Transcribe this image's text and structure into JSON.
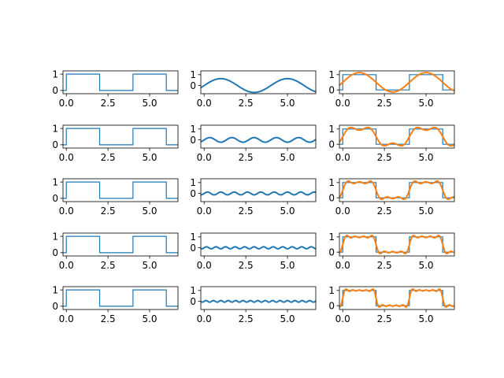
{
  "figure": {
    "background": "#ffffff"
  },
  "chart_data": [
    {
      "type": "line",
      "row": 1,
      "col": 1,
      "series": [
        {
          "kind": "square",
          "color": "#1f77b4",
          "period": 4,
          "high": 1,
          "low": 0
        }
      ],
      "xlim": [
        -0.2,
        6.7
      ],
      "ylim": [
        -0.2,
        1.2
      ],
      "xticks": [
        0.0,
        2.5,
        5.0
      ],
      "xtick_labels": [
        "0.0",
        "2.5",
        "5.0"
      ],
      "yticks": [
        0,
        1
      ],
      "ytick_labels": [
        "0",
        "1"
      ]
    },
    {
      "type": "line",
      "row": 1,
      "col": 2,
      "series": [
        {
          "kind": "fourier-term",
          "harmonic": 1,
          "color": "#1f77b4"
        }
      ],
      "xlim": [
        -0.2,
        6.7
      ],
      "ylim": [
        -0.75,
        1.35
      ],
      "xticks": [
        0.0,
        2.5,
        5.0
      ],
      "xtick_labels": [
        "0.0",
        "2.5",
        "5.0"
      ],
      "yticks": [
        0,
        1
      ],
      "ytick_labels": [
        "0",
        "1"
      ]
    },
    {
      "type": "line",
      "row": 1,
      "col": 3,
      "series": [
        {
          "kind": "square",
          "color": "#1f77b4",
          "period": 4,
          "high": 1,
          "low": 0
        },
        {
          "kind": "fourier-partial-sum",
          "harmonics": 1,
          "color": "#ff7f0e"
        }
      ],
      "xlim": [
        -0.2,
        6.7
      ],
      "ylim": [
        -0.25,
        1.25
      ],
      "xticks": [
        0.0,
        2.5,
        5.0
      ],
      "xtick_labels": [
        "0.0",
        "2.5",
        "5.0"
      ],
      "yticks": [
        0,
        1
      ],
      "ytick_labels": [
        "0",
        "1"
      ]
    },
    {
      "type": "line",
      "row": 2,
      "col": 1,
      "series": [
        {
          "kind": "square",
          "color": "#1f77b4",
          "period": 4,
          "high": 1,
          "low": 0
        }
      ],
      "xlim": [
        -0.2,
        6.7
      ],
      "ylim": [
        -0.2,
        1.2
      ],
      "xticks": [
        0.0,
        2.5,
        5.0
      ],
      "xtick_labels": [
        "0.0",
        "2.5",
        "5.0"
      ],
      "yticks": [
        0,
        1
      ],
      "ytick_labels": [
        "0",
        "1"
      ]
    },
    {
      "type": "line",
      "row": 2,
      "col": 2,
      "series": [
        {
          "kind": "fourier-term",
          "harmonic": 3,
          "color": "#1f77b4"
        }
      ],
      "xlim": [
        -0.2,
        6.7
      ],
      "ylim": [
        -0.75,
        1.35
      ],
      "xticks": [
        0.0,
        2.5,
        5.0
      ],
      "xtick_labels": [
        "0.0",
        "2.5",
        "5.0"
      ],
      "yticks": [
        0,
        1
      ],
      "ytick_labels": [
        "0",
        "1"
      ]
    },
    {
      "type": "line",
      "row": 2,
      "col": 3,
      "series": [
        {
          "kind": "square",
          "color": "#1f77b4",
          "period": 4,
          "high": 1,
          "low": 0
        },
        {
          "kind": "fourier-partial-sum",
          "harmonics": 3,
          "color": "#ff7f0e"
        }
      ],
      "xlim": [
        -0.2,
        6.7
      ],
      "ylim": [
        -0.25,
        1.25
      ],
      "xticks": [
        0.0,
        2.5,
        5.0
      ],
      "xtick_labels": [
        "0.0",
        "2.5",
        "5.0"
      ],
      "yticks": [
        0,
        1
      ],
      "ytick_labels": [
        "0",
        "1"
      ]
    },
    {
      "type": "line",
      "row": 3,
      "col": 1,
      "series": [
        {
          "kind": "square",
          "color": "#1f77b4",
          "period": 4,
          "high": 1,
          "low": 0
        }
      ],
      "xlim": [
        -0.2,
        6.7
      ],
      "ylim": [
        -0.2,
        1.2
      ],
      "xticks": [
        0.0,
        2.5,
        5.0
      ],
      "xtick_labels": [
        "0.0",
        "2.5",
        "5.0"
      ],
      "yticks": [
        0,
        1
      ],
      "ytick_labels": [
        "0",
        "1"
      ]
    },
    {
      "type": "line",
      "row": 3,
      "col": 2,
      "series": [
        {
          "kind": "fourier-term",
          "harmonic": 5,
          "color": "#1f77b4"
        }
      ],
      "xlim": [
        -0.2,
        6.7
      ],
      "ylim": [
        -0.75,
        1.35
      ],
      "xticks": [
        0.0,
        2.5,
        5.0
      ],
      "xtick_labels": [
        "0.0",
        "2.5",
        "5.0"
      ],
      "yticks": [
        0,
        1
      ],
      "ytick_labels": [
        "0",
        "1"
      ]
    },
    {
      "type": "line",
      "row": 3,
      "col": 3,
      "series": [
        {
          "kind": "square",
          "color": "#1f77b4",
          "period": 4,
          "high": 1,
          "low": 0
        },
        {
          "kind": "fourier-partial-sum",
          "harmonics": 5,
          "color": "#ff7f0e"
        }
      ],
      "xlim": [
        -0.2,
        6.7
      ],
      "ylim": [
        -0.25,
        1.25
      ],
      "xticks": [
        0.0,
        2.5,
        5.0
      ],
      "xtick_labels": [
        "0.0",
        "2.5",
        "5.0"
      ],
      "yticks": [
        0,
        1
      ],
      "ytick_labels": [
        "0",
        "1"
      ]
    },
    {
      "type": "line",
      "row": 4,
      "col": 1,
      "series": [
        {
          "kind": "square",
          "color": "#1f77b4",
          "period": 4,
          "high": 1,
          "low": 0
        }
      ],
      "xlim": [
        -0.2,
        6.7
      ],
      "ylim": [
        -0.2,
        1.2
      ],
      "xticks": [
        0.0,
        2.5,
        5.0
      ],
      "xtick_labels": [
        "0.0",
        "2.5",
        "5.0"
      ],
      "yticks": [
        0,
        1
      ],
      "ytick_labels": [
        "0",
        "1"
      ]
    },
    {
      "type": "line",
      "row": 4,
      "col": 2,
      "series": [
        {
          "kind": "fourier-term",
          "harmonic": 7,
          "color": "#1f77b4"
        }
      ],
      "xlim": [
        -0.2,
        6.7
      ],
      "ylim": [
        -0.75,
        1.35
      ],
      "xticks": [
        0.0,
        2.5,
        5.0
      ],
      "xtick_labels": [
        "0.0",
        "2.5",
        "5.0"
      ],
      "yticks": [
        0,
        1
      ],
      "ytick_labels": [
        "0",
        "1"
      ]
    },
    {
      "type": "line",
      "row": 4,
      "col": 3,
      "series": [
        {
          "kind": "square",
          "color": "#1f77b4",
          "period": 4,
          "high": 1,
          "low": 0
        },
        {
          "kind": "fourier-partial-sum",
          "harmonics": 7,
          "color": "#ff7f0e"
        }
      ],
      "xlim": [
        -0.2,
        6.7
      ],
      "ylim": [
        -0.25,
        1.25
      ],
      "xticks": [
        0.0,
        2.5,
        5.0
      ],
      "xtick_labels": [
        "0.0",
        "2.5",
        "5.0"
      ],
      "yticks": [
        0,
        1
      ],
      "ytick_labels": [
        "0",
        "1"
      ]
    },
    {
      "type": "line",
      "row": 5,
      "col": 1,
      "series": [
        {
          "kind": "square",
          "color": "#1f77b4",
          "period": 4,
          "high": 1,
          "low": 0
        }
      ],
      "xlim": [
        -0.2,
        6.7
      ],
      "ylim": [
        -0.2,
        1.2
      ],
      "xticks": [
        0.0,
        2.5,
        5.0
      ],
      "xtick_labels": [
        "0.0",
        "2.5",
        "5.0"
      ],
      "yticks": [
        0,
        1
      ],
      "ytick_labels": [
        "0",
        "1"
      ]
    },
    {
      "type": "line",
      "row": 5,
      "col": 2,
      "series": [
        {
          "kind": "fourier-term",
          "harmonic": 9,
          "color": "#1f77b4"
        }
      ],
      "xlim": [
        -0.2,
        6.7
      ],
      "ylim": [
        -0.75,
        1.35
      ],
      "xticks": [
        0.0,
        2.5,
        5.0
      ],
      "xtick_labels": [
        "0.0",
        "2.5",
        "5.0"
      ],
      "yticks": [
        0,
        1
      ],
      "ytick_labels": [
        "0",
        "1"
      ]
    },
    {
      "type": "line",
      "row": 5,
      "col": 3,
      "series": [
        {
          "kind": "square",
          "color": "#1f77b4",
          "period": 4,
          "high": 1,
          "low": 0
        },
        {
          "kind": "fourier-partial-sum",
          "harmonics": 9,
          "color": "#ff7f0e"
        }
      ],
      "xlim": [
        -0.2,
        6.7
      ],
      "ylim": [
        -0.25,
        1.25
      ],
      "xticks": [
        0.0,
        2.5,
        5.0
      ],
      "xtick_labels": [
        "0.0",
        "2.5",
        "5.0"
      ],
      "yticks": [
        0,
        1
      ],
      "ytick_labels": [
        "0",
        "1"
      ]
    }
  ]
}
